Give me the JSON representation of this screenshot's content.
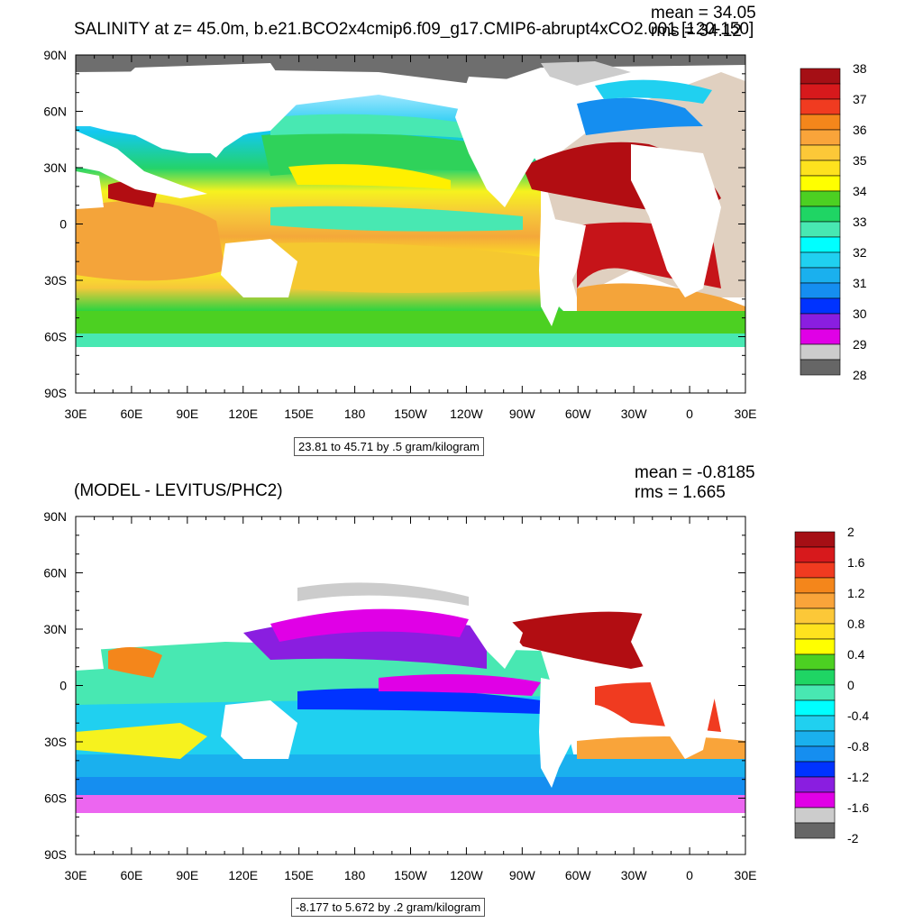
{
  "chart_data": [
    {
      "type": "heatmap",
      "title": "SALINITY at z=  45.0m, b.e21.BCO2x4cmip6.f09_g17.CMIP6-abrupt4xCO2.001 [120-150]",
      "stats": {
        "mean": "mean = 34.05",
        "rms": "rms = 34.12"
      },
      "xticks": [
        "30E",
        "60E",
        "90E",
        "120E",
        "150E",
        "180",
        "150W",
        "120W",
        "90W",
        "60W",
        "30W",
        "0",
        "30E"
      ],
      "yticks": [
        "90N",
        "60N",
        "30N",
        "0",
        "30S",
        "60S",
        "90S"
      ],
      "xlim": [
        30,
        390
      ],
      "ylim": [
        -90,
        90
      ],
      "info": "23.81 to 45.71 by .5 gram/kilogram",
      "colorbar": {
        "labels": [
          "38",
          "37",
          "36",
          "35",
          "34",
          "33",
          "32",
          "31",
          "30",
          "29",
          "28"
        ],
        "colors": [
          "#a50f15",
          "#d7191c",
          "#f03b20",
          "#f4861b",
          "#f9a43a",
          "#fcc838",
          "#fee21e",
          "#ffff00",
          "#4cd022",
          "#1fd564",
          "#48e8b2",
          "#00ffff",
          "#20d0f0",
          "#1ab0ee",
          "#158ef0",
          "#0033ff",
          "#8a1ee0",
          "#e000e6",
          "#cccccc",
          "#666666"
        ]
      }
    },
    {
      "type": "heatmap",
      "title": "(MODEL - LEVITUS/PHC2)",
      "stats": {
        "mean": "mean = -0.8185",
        "rms": "rms = 1.665"
      },
      "xticks": [
        "30E",
        "60E",
        "90E",
        "120E",
        "150E",
        "180",
        "150W",
        "120W",
        "90W",
        "60W",
        "30W",
        "0",
        "30E"
      ],
      "yticks": [
        "90N",
        "60N",
        "30N",
        "0",
        "30S",
        "60S",
        "90S"
      ],
      "xlim": [
        30,
        390
      ],
      "ylim": [
        -90,
        90
      ],
      "info": "-8.177 to 5.672 by .2 gram/kilogram",
      "colorbar": {
        "labels": [
          "2",
          "1.6",
          "1.2",
          "0.8",
          "0.4",
          "0",
          "-0.4",
          "-0.8",
          "-1.2",
          "-1.6",
          "-2"
        ],
        "colors": [
          "#a50f15",
          "#d7191c",
          "#f03b20",
          "#f4861b",
          "#f9a43a",
          "#fcc838",
          "#fee21e",
          "#ffff00",
          "#4cd022",
          "#1fd564",
          "#48e8b2",
          "#00ffff",
          "#20d0f0",
          "#1ab0ee",
          "#158ef0",
          "#0033ff",
          "#8a1ee0",
          "#e000e6",
          "#cccccc",
          "#666666"
        ]
      }
    }
  ]
}
